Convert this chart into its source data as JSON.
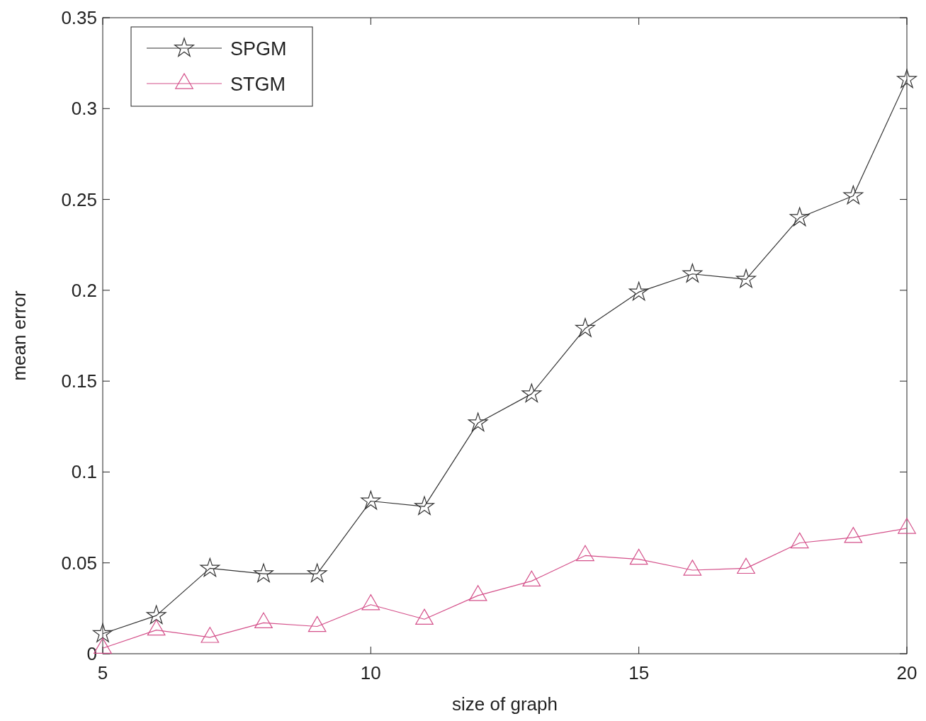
{
  "chart_data": {
    "type": "line",
    "xlabel": "size of graph",
    "ylabel": "mean error",
    "x": [
      5,
      6,
      7,
      8,
      9,
      10,
      11,
      12,
      13,
      14,
      15,
      16,
      17,
      18,
      19,
      20
    ],
    "series": [
      {
        "name": "SPGM",
        "color": "#333333",
        "marker": "star",
        "values": [
          0.011,
          0.021,
          0.047,
          0.044,
          0.044,
          0.084,
          0.081,
          0.127,
          0.143,
          0.179,
          0.199,
          0.209,
          0.206,
          0.24,
          0.252,
          0.316
        ]
      },
      {
        "name": "STGM",
        "color": "#d4508a",
        "marker": "triangle",
        "values": [
          0.003,
          0.013,
          0.009,
          0.017,
          0.015,
          0.027,
          0.019,
          0.032,
          0.04,
          0.054,
          0.052,
          0.046,
          0.047,
          0.061,
          0.064,
          0.069
        ]
      }
    ],
    "xlim": [
      5,
      20
    ],
    "xticks": [
      5,
      10,
      15,
      20
    ],
    "ylim": [
      0,
      0.35
    ],
    "yticks": [
      0,
      0.05,
      0.1,
      0.15,
      0.2,
      0.25,
      0.3,
      0.35
    ],
    "legend": "top left",
    "grid": false,
    "line_style": "solid"
  }
}
